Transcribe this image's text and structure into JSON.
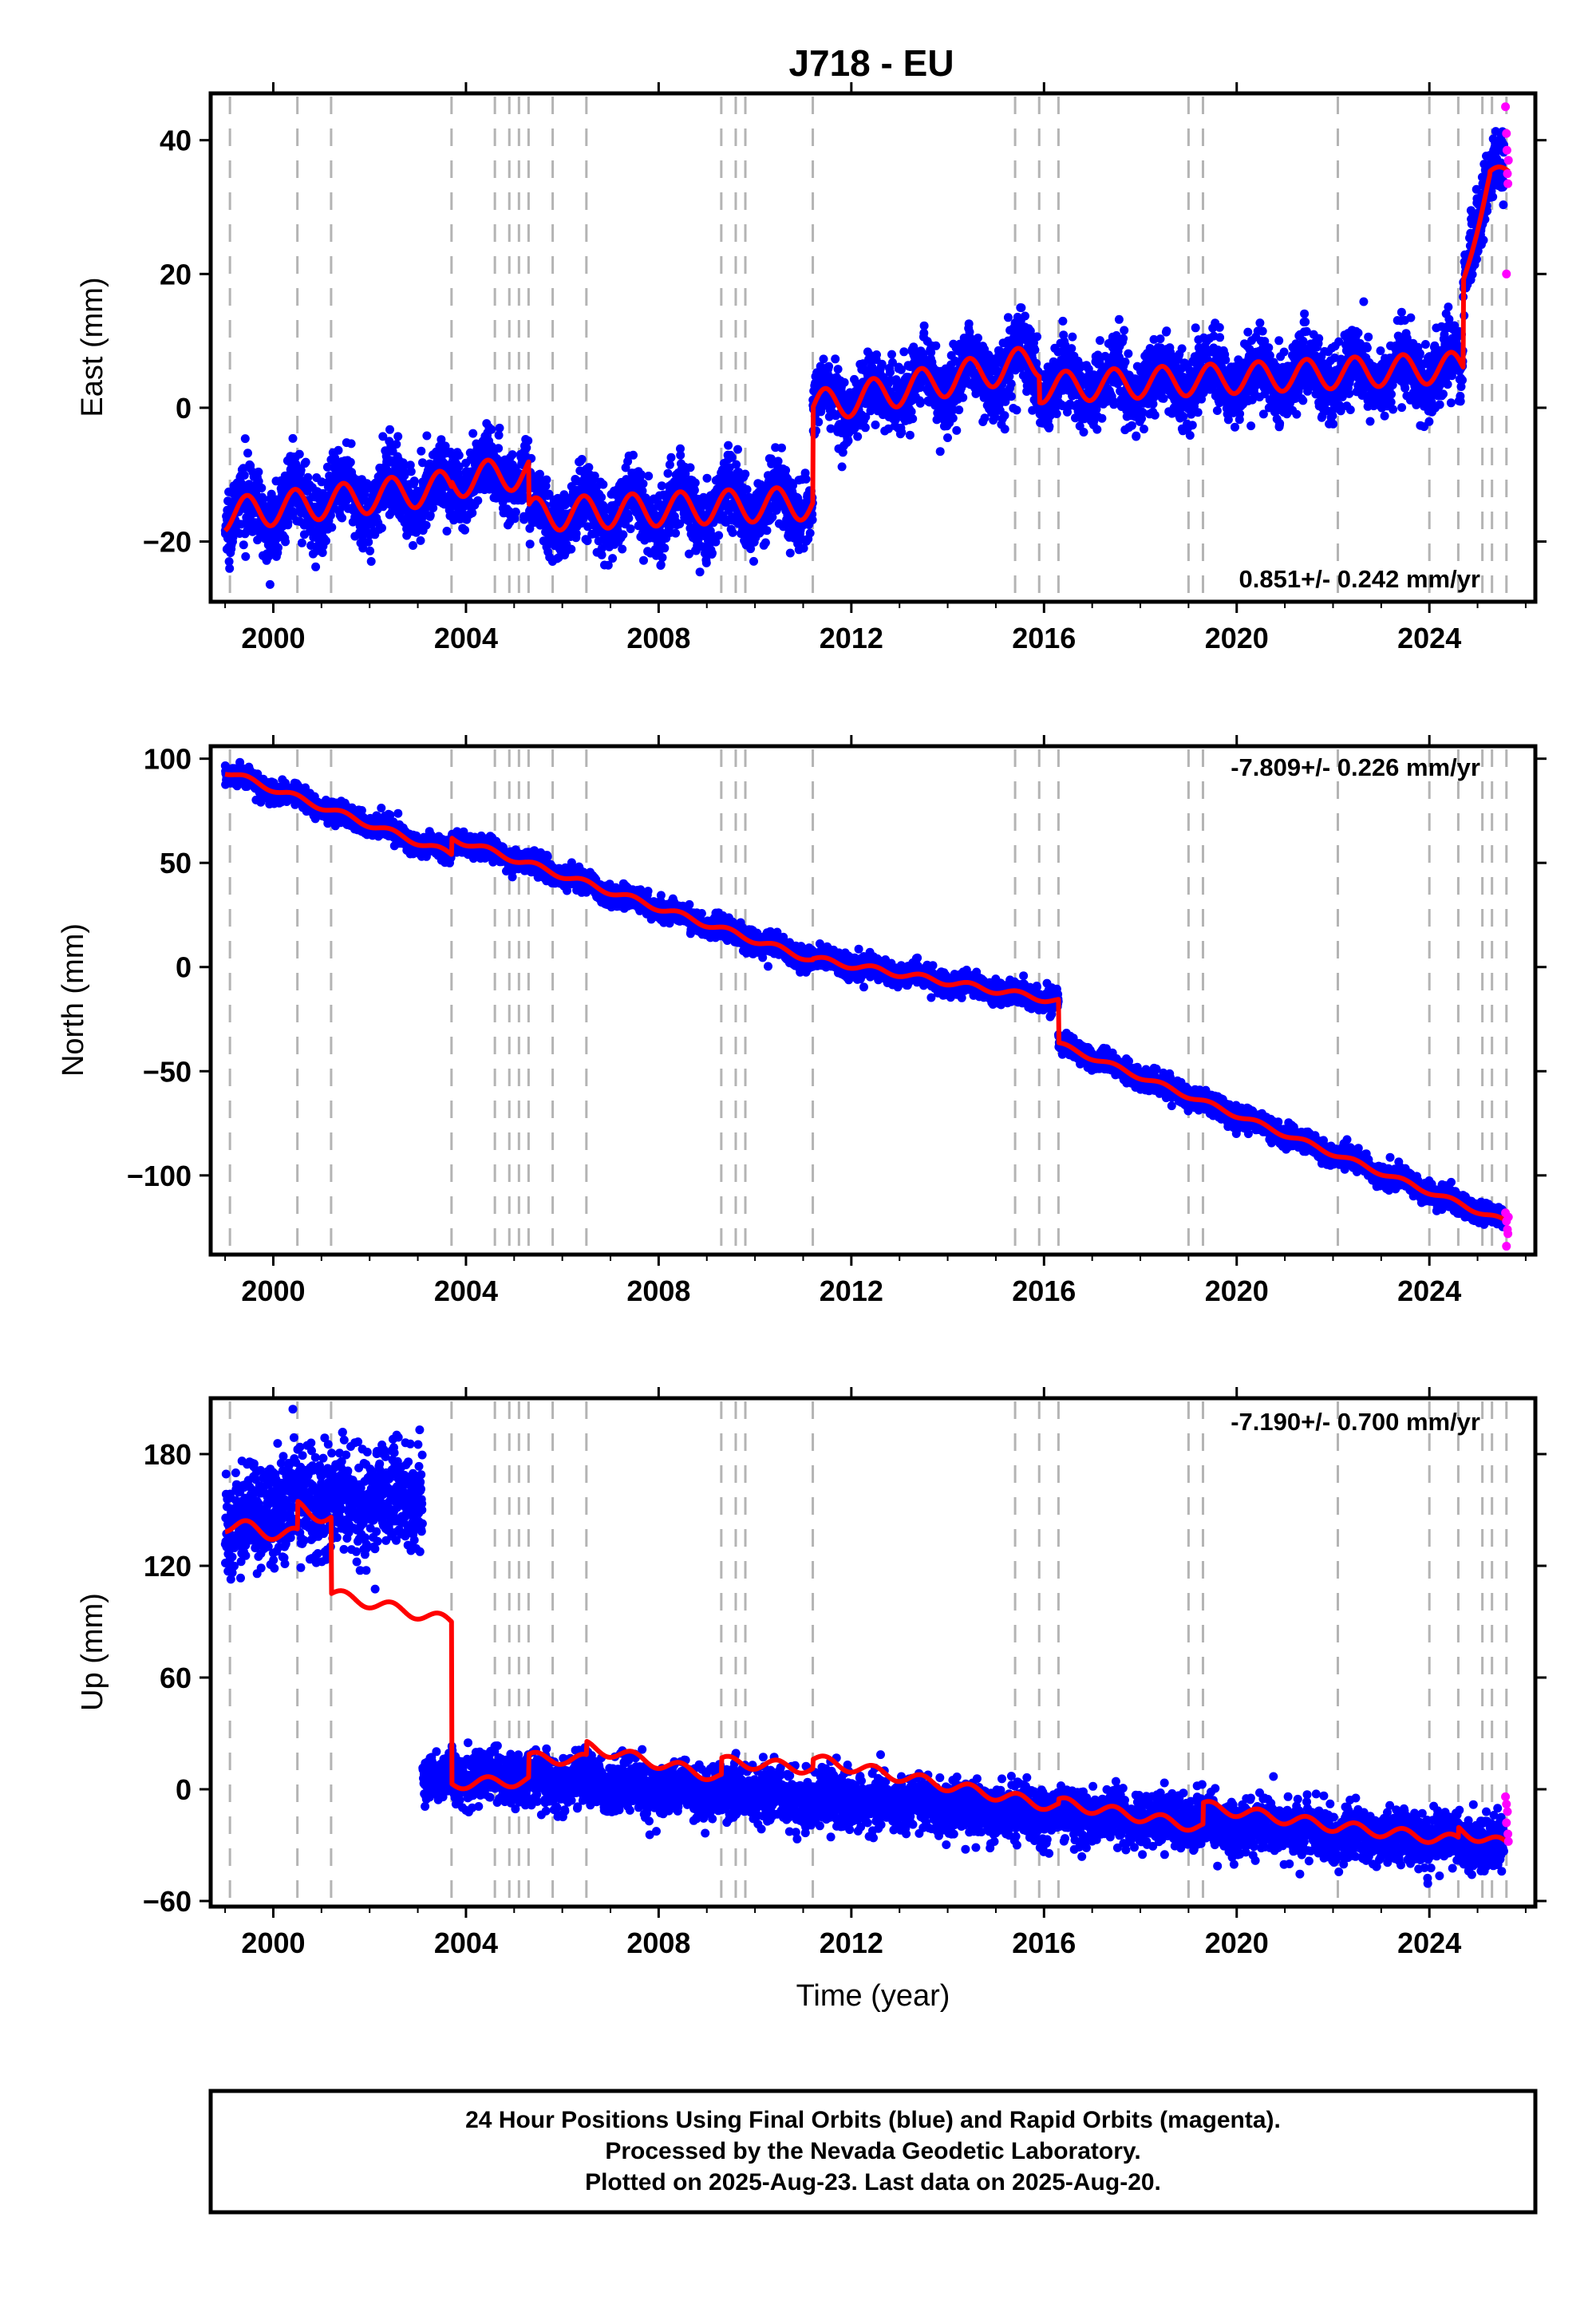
{
  "title": "J718 - EU",
  "xlabel": "Time (year)",
  "footer": {
    "line1": "24 Hour Positions Using Final Orbits (blue) and Rapid Orbits (magenta).",
    "line2": "Processed by the Nevada Geodetic Laboratory.",
    "line3": "Plotted on 2025-Aug-23. Last data on 2025-Aug-20."
  },
  "colors": {
    "final": "#0000ff",
    "rapid": "#ff00ff",
    "model": "#ff0000",
    "steps": "#b4b4b4"
  },
  "chart_data": [
    {
      "type": "scatter",
      "name": "east",
      "ylabel": "East (mm)",
      "xlim": [
        1998.7,
        2026.2
      ],
      "ylim": [
        -29,
        47
      ],
      "xticks": [
        2000,
        2004,
        2008,
        2012,
        2016,
        2020,
        2024
      ],
      "yticks": [
        -20,
        0,
        20,
        40
      ],
      "rate_text": "0.851+/- 0.242 mm/yr",
      "rate_position": "bottom-right",
      "step_epochs": [
        1999.1,
        2000.5,
        2001.2,
        2003.7,
        2004.6,
        2004.9,
        2005.1,
        2005.3,
        2005.8,
        2006.5,
        2009.3,
        2009.6,
        2009.8,
        2011.2,
        2015.4,
        2015.9,
        2016.3,
        2019.0,
        2019.3,
        2022.1,
        2024.0,
        2024.6,
        2025.1,
        2025.3,
        2025.6
      ],
      "trend_segments": [
        {
          "start": 1999.0,
          "end": 2003.7,
          "offset": -16.0,
          "slope": 0.9,
          "amp": 2.5
        },
        {
          "start": 2003.7,
          "end": 2005.3,
          "offset": -11.0,
          "slope": 0.9,
          "amp": 2.5
        },
        {
          "start": 2005.3,
          "end": 2011.2,
          "offset": -16.0,
          "slope": 0.3,
          "amp": 2.5
        },
        {
          "start": 2011.2,
          "end": 2015.9,
          "offset": 0.0,
          "slope": 1.5,
          "amp": 2.5
        },
        {
          "start": 2015.9,
          "end": 2024.7,
          "offset": 3.0,
          "slope": 0.35,
          "amp": 2.3
        },
        {
          "start": 2024.7,
          "end": 2025.25,
          "offset": 19.0,
          "slope": 28.0,
          "amp": 1.0
        },
        {
          "start": 2025.25,
          "end": 2025.65,
          "offset": 35.0,
          "slope": 0.0,
          "amp": 1.0
        }
      ],
      "final_noise": 2.6,
      "final_end": 2025.55,
      "rapid_points": [
        [
          2025.58,
          45.0
        ],
        [
          2025.6,
          41.0
        ],
        [
          2025.61,
          38.5
        ],
        [
          2025.62,
          35.0
        ],
        [
          2025.63,
          33.5
        ],
        [
          2025.64,
          37.0
        ],
        [
          2025.6,
          20.0
        ]
      ]
    },
    {
      "type": "scatter",
      "name": "north",
      "ylabel": "North (mm)",
      "xlim": [
        1998.7,
        2026.2
      ],
      "ylim": [
        -138,
        106
      ],
      "xticks": [
        2000,
        2004,
        2008,
        2012,
        2016,
        2020,
        2024
      ],
      "yticks": [
        -100,
        -50,
        0,
        50,
        100
      ],
      "rate_text": "-7.809+/- 0.226 mm/yr",
      "rate_position": "top-right",
      "step_epochs": [
        1999.1,
        2000.5,
        2001.2,
        2003.7,
        2004.6,
        2004.9,
        2005.1,
        2005.3,
        2005.8,
        2006.5,
        2009.3,
        2009.6,
        2009.8,
        2011.2,
        2015.4,
        2015.9,
        2016.3,
        2019.0,
        2019.3,
        2022.1,
        2024.0,
        2024.6,
        2025.1,
        2025.3,
        2025.6
      ],
      "trend_segments": [
        {
          "start": 1999.0,
          "end": 2003.7,
          "offset": 94.0,
          "slope": -8.5,
          "amp": 1.5
        },
        {
          "start": 2003.7,
          "end": 2011.2,
          "offset": 62.0,
          "slope": -7.8,
          "amp": 1.5
        },
        {
          "start": 2011.2,
          "end": 2016.3,
          "offset": 4.0,
          "slope": -4.0,
          "amp": 1.5
        },
        {
          "start": 2016.3,
          "end": 2025.65,
          "offset": -37.0,
          "slope": -9.2,
          "amp": 1.2
        }
      ],
      "final_noise": 2.5,
      "final_end": 2025.55,
      "rapid_points": [
        [
          2025.58,
          -118.0
        ],
        [
          2025.6,
          -122.0
        ],
        [
          2025.62,
          -126.0
        ],
        [
          2025.63,
          -128.0
        ],
        [
          2025.6,
          -134.0
        ],
        [
          2025.64,
          -120.0
        ]
      ]
    },
    {
      "type": "scatter",
      "name": "up",
      "ylabel": "Up (mm)",
      "xlim": [
        1998.7,
        2026.2
      ],
      "ylim": [
        -63,
        210
      ],
      "xticks": [
        2000,
        2004,
        2008,
        2012,
        2016,
        2020,
        2024
      ],
      "yticks": [
        -60,
        0,
        60,
        120,
        180
      ],
      "rate_text": "-7.190+/- 0.700 mm/yr",
      "rate_position": "top-right",
      "step_epochs": [
        1999.1,
        2000.5,
        2001.2,
        2003.7,
        2004.6,
        2004.9,
        2005.1,
        2005.3,
        2005.8,
        2006.5,
        2009.3,
        2009.6,
        2009.8,
        2011.2,
        2015.4,
        2015.9,
        2016.3,
        2019.0,
        2019.3,
        2022.1,
        2024.0,
        2024.6,
        2025.1,
        2025.3,
        2025.6
      ],
      "trend_segments": [
        {
          "start": 1999.0,
          "end": 2000.5,
          "offset": 142.0,
          "slope": -4.0,
          "amp": 4.0
        },
        {
          "start": 2000.5,
          "end": 2001.2,
          "offset": 151.0,
          "slope": -7.0,
          "amp": 4.0
        },
        {
          "start": 2001.2,
          "end": 2003.7,
          "offset": 105.0,
          "slope": -6.0,
          "amp": 3.0
        },
        {
          "start": 2003.7,
          "end": 2005.3,
          "offset": 3.0,
          "slope": 1.0,
          "amp": 3.0
        },
        {
          "start": 2005.3,
          "end": 2006.5,
          "offset": 17.0,
          "slope": -1.0,
          "amp": 3.0
        },
        {
          "start": 2006.5,
          "end": 2009.3,
          "offset": 23.0,
          "slope": -6.0,
          "amp": 3.0
        },
        {
          "start": 2009.3,
          "end": 2011.2,
          "offset": 15.0,
          "slope": -2.0,
          "amp": 3.0
        },
        {
          "start": 2011.2,
          "end": 2016.3,
          "offset": 16.0,
          "slope": -5.0,
          "amp": 3.0
        },
        {
          "start": 2016.3,
          "end": 2019.3,
          "offset": -7.0,
          "slope": -4.5,
          "amp": 3.0
        },
        {
          "start": 2019.3,
          "end": 2022.1,
          "offset": -9.0,
          "slope": -4.0,
          "amp": 3.0
        },
        {
          "start": 2022.1,
          "end": 2024.6,
          "offset": -20.0,
          "slope": -3.0,
          "amp": 3.0
        },
        {
          "start": 2024.6,
          "end": 2025.65,
          "offset": -22.0,
          "slope": -8.0,
          "amp": 3.0
        }
      ],
      "final_ranges": [
        {
          "start": 1999.0,
          "end": 2000.5,
          "offset": 142.0,
          "slope": 8.0,
          "noise": 14.0
        },
        {
          "start": 2000.5,
          "end": 2003.1,
          "offset": 155.0,
          "slope": 0.5,
          "noise": 14.0
        },
        {
          "start": 2003.1,
          "end": 2003.7,
          "offset": 4.0,
          "slope": 0.0,
          "noise": 6.0
        },
        {
          "start": 2003.7,
          "end": 2025.55,
          "offset": 8.0,
          "slope": -1.7,
          "noise": 7.0
        }
      ],
      "final_end": 2025.55,
      "rapid_points": [
        [
          2025.58,
          -4.0
        ],
        [
          2025.6,
          -8.0
        ],
        [
          2025.62,
          -12.0
        ],
        [
          2025.6,
          -18.0
        ],
        [
          2025.63,
          -24.0
        ],
        [
          2025.64,
          -28.0
        ]
      ]
    }
  ]
}
